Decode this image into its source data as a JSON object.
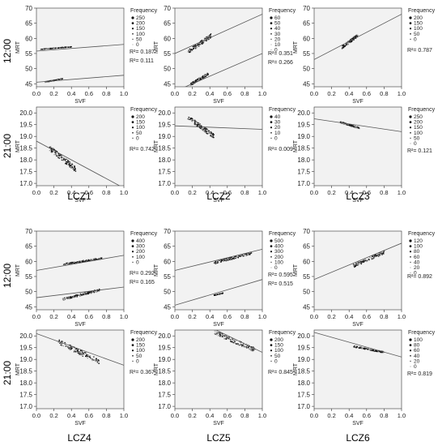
{
  "row_labels": [
    "12:00",
    "21:00",
    "12:00",
    "21:00"
  ],
  "lcz_labels": [
    "LCZ1",
    "LCZ2",
    "LCZ3",
    "LCZ4",
    "LCZ5",
    "LCZ6"
  ],
  "legend_title": "Frequency",
  "colors": {
    "plot_bg": "#f2f2f2",
    "points": "#111111",
    "line": "#555555",
    "axis": "#333333"
  },
  "chart_data": [
    {
      "id": "lcz1-12",
      "type": "scatter",
      "xlabel": "SVF",
      "ylabel": "MRT",
      "xlim": [
        0,
        1
      ],
      "ylim": [
        44,
        70
      ],
      "yticks": [
        45,
        50,
        55,
        60,
        65,
        70
      ],
      "xticks": [
        "0.0",
        "0.2",
        "0.4",
        "0.6",
        "0.8",
        "1.0"
      ],
      "legend": [
        "250",
        "200",
        "150",
        "100",
        "50",
        "0"
      ],
      "r2": [
        "R²= 0.187",
        "R²= 0.111"
      ],
      "clusters": [
        {
          "x": [
            0.05,
            0.4
          ],
          "y": [
            56.4,
            57.2
          ]
        },
        {
          "x": [
            0.1,
            0.3
          ],
          "y": [
            45.6,
            46.6
          ]
        }
      ],
      "lines": [
        [
          55.8,
          58.0
        ],
        [
          45.5,
          47.8
        ]
      ]
    },
    {
      "id": "lcz2-12",
      "type": "scatter",
      "xlabel": "SVF",
      "ylabel": "MRT",
      "xlim": [
        0,
        1
      ],
      "ylim": [
        44,
        70
      ],
      "yticks": [
        45,
        50,
        55,
        60,
        65,
        70
      ],
      "xticks": [
        "0.0",
        "0.2",
        "0.4",
        "0.6",
        "0.8",
        "1.0"
      ],
      "legend": [
        "60",
        "50",
        "40",
        "30",
        "20",
        "10",
        "0"
      ],
      "r2": [
        "R²= 0.351",
        "R²= 0.266"
      ],
      "clusters": [
        {
          "x": [
            0.15,
            0.42
          ],
          "y": [
            55.5,
            61.0
          ]
        },
        {
          "x": [
            0.18,
            0.38
          ],
          "y": [
            44.8,
            48.2
          ]
        }
      ],
      "lines": [
        [
          55.0,
          68.0
        ],
        [
          42.5,
          55.0
        ]
      ]
    },
    {
      "id": "lcz3-12",
      "type": "scatter",
      "xlabel": "SVF",
      "ylabel": "MRT",
      "xlim": [
        0,
        1
      ],
      "ylim": [
        44,
        70
      ],
      "yticks": [
        45,
        50,
        55,
        60,
        65,
        70
      ],
      "xticks": [
        "0.0",
        "0.2",
        "0.4",
        "0.6",
        "0.8",
        "1.0"
      ],
      "legend": [
        "200",
        "150",
        "100",
        "50",
        "0"
      ],
      "r2": [
        "R²= 0.787"
      ],
      "clusters": [
        {
          "x": [
            0.32,
            0.5
          ],
          "y": [
            57.0,
            61.0
          ]
        }
      ],
      "lines": [
        [
          53.0,
          68.0
        ]
      ]
    },
    {
      "id": "lcz1-21",
      "type": "scatter",
      "xlabel": "SVF",
      "ylabel": "MRT",
      "xlim": [
        0,
        1
      ],
      "ylim": [
        16.9,
        20.25
      ],
      "yticks": [
        17.0,
        17.5,
        18.0,
        18.5,
        19.0,
        19.5,
        20.0
      ],
      "xticks": [
        "0.0",
        "0.2",
        "0.4",
        "0.6",
        "0.8",
        "1.0"
      ],
      "legend": [
        "200",
        "150",
        "100",
        "50",
        "0"
      ],
      "r2": [
        "R²= 0.742"
      ],
      "clusters": [
        {
          "x": [
            0.15,
            0.45
          ],
          "y": [
            17.6,
            18.5
          ],
          "neg": true
        }
      ],
      "lines": [
        [
          18.8,
          16.8
        ]
      ]
    },
    {
      "id": "lcz2-21",
      "type": "scatter",
      "xlabel": "SVF",
      "ylabel": "MRT",
      "xlim": [
        0,
        1
      ],
      "ylim": [
        16.9,
        20.25
      ],
      "yticks": [
        17.0,
        17.5,
        18.0,
        18.5,
        19.0,
        19.5,
        20.0
      ],
      "xticks": [
        "0.0",
        "0.2",
        "0.4",
        "0.6",
        "0.8",
        "1.0"
      ],
      "legend": [
        "40",
        "30",
        "20",
        "10",
        "0"
      ],
      "r2": [
        "R²= 0.009"
      ],
      "clusters": [
        {
          "x": [
            0.15,
            0.45
          ],
          "y": [
            19.0,
            19.8
          ],
          "neg": true
        }
      ],
      "lines": [
        [
          19.45,
          19.3
        ]
      ]
    },
    {
      "id": "lcz3-21",
      "type": "scatter",
      "xlabel": "SVF",
      "ylabel": "MRT",
      "xlim": [
        0,
        1
      ],
      "ylim": [
        16.9,
        20.25
      ],
      "yticks": [
        17.0,
        17.5,
        18.0,
        18.5,
        19.0,
        19.5,
        20.0
      ],
      "xticks": [
        "0.0",
        "0.2",
        "0.4",
        "0.6",
        "0.8",
        "1.0"
      ],
      "legend": [
        "250",
        "200",
        "150",
        "100",
        "50",
        "0"
      ],
      "r2": [
        "R²= 0.121"
      ],
      "clusters": [
        {
          "x": [
            0.3,
            0.52
          ],
          "y": [
            19.35,
            19.6
          ],
          "neg": true
        }
      ],
      "lines": [
        [
          19.75,
          19.2
        ]
      ]
    },
    {
      "id": "lcz4-12",
      "type": "scatter",
      "xlabel": "SVF",
      "ylabel": "MRT",
      "xlim": [
        0,
        1
      ],
      "ylim": [
        44,
        70
      ],
      "yticks": [
        45,
        50,
        55,
        60,
        65,
        70
      ],
      "xticks": [
        "0.0",
        "0.2",
        "0.4",
        "0.6",
        "0.8",
        "1.0"
      ],
      "legend": [
        "400",
        "300",
        "200",
        "100",
        "0"
      ],
      "r2": [
        "R²= 0.292",
        "R²= 0.165"
      ],
      "clusters": [
        {
          "x": [
            0.3,
            0.75
          ],
          "y": [
            59.0,
            61.0
          ]
        },
        {
          "x": [
            0.3,
            0.72
          ],
          "y": [
            47.5,
            50.5
          ]
        }
      ],
      "lines": [
        [
          57.0,
          62.0
        ],
        [
          48.0,
          51.5
        ]
      ]
    },
    {
      "id": "lcz5-12",
      "type": "scatter",
      "xlabel": "SVF",
      "ylabel": "MRT",
      "xlim": [
        0,
        1
      ],
      "ylim": [
        44,
        70
      ],
      "yticks": [
        45,
        50,
        55,
        60,
        65,
        70
      ],
      "xticks": [
        "0.0",
        "0.2",
        "0.4",
        "0.6",
        "0.8",
        "1.0"
      ],
      "legend": [
        "500",
        "400",
        "300",
        "200",
        "100",
        "0"
      ],
      "r2": [
        "R²= 0.595",
        "R²= 0.515"
      ],
      "clusters": [
        {
          "x": [
            0.45,
            0.88
          ],
          "y": [
            59.5,
            62.8
          ]
        },
        {
          "x": [
            0.45,
            0.55
          ],
          "y": [
            48.8,
            49.5
          ]
        }
      ],
      "lines": [
        [
          57.0,
          64.0
        ],
        [
          45.5,
          54.0
        ]
      ]
    },
    {
      "id": "lcz6-12",
      "type": "scatter",
      "xlabel": "SVF",
      "ylabel": "MRT",
      "xlim": [
        0,
        1
      ],
      "ylim": [
        44,
        70
      ],
      "yticks": [
        45,
        50,
        55,
        60,
        65,
        70
      ],
      "xticks": [
        "0.0",
        "0.2",
        "0.4",
        "0.6",
        "0.8",
        "1.0"
      ],
      "legend": [
        "120",
        "100",
        "80",
        "60",
        "40",
        "20",
        "0"
      ],
      "r2": [
        "R²= 0.892"
      ],
      "clusters": [
        {
          "x": [
            0.45,
            0.8
          ],
          "y": [
            58.5,
            63.0
          ]
        }
      ],
      "lines": [
        [
          54.0,
          66.0
        ]
      ]
    },
    {
      "id": "lcz4-21",
      "type": "scatter",
      "xlabel": "SVF",
      "ylabel": "MRT",
      "xlim": [
        0,
        1
      ],
      "ylim": [
        16.9,
        20.25
      ],
      "yticks": [
        17.0,
        17.5,
        18.0,
        18.5,
        19.0,
        19.5,
        20.0
      ],
      "xticks": [
        "0.0",
        "0.2",
        "0.4",
        "0.6",
        "0.8",
        "1.0"
      ],
      "legend": [
        "200",
        "150",
        "100",
        "50",
        "0"
      ],
      "r2": [
        "R²= 0.367"
      ],
      "clusters": [
        {
          "x": [
            0.25,
            0.72
          ],
          "y": [
            18.9,
            19.75
          ],
          "neg": true
        }
      ],
      "lines": [
        [
          20.1,
          18.75
        ]
      ]
    },
    {
      "id": "lcz5-21",
      "type": "scatter",
      "xlabel": "SVF",
      "ylabel": "MRT",
      "xlim": [
        0,
        1
      ],
      "ylim": [
        16.9,
        20.25
      ],
      "yticks": [
        17.0,
        17.5,
        18.0,
        18.5,
        19.0,
        19.5,
        20.0
      ],
      "xticks": [
        "0.0",
        "0.2",
        "0.4",
        "0.6",
        "0.8",
        "1.0"
      ],
      "legend": [
        "200",
        "150",
        "100",
        "50",
        "0"
      ],
      "r2": [
        "R²= 0.845"
      ],
      "clusters": [
        {
          "x": [
            0.45,
            0.92
          ],
          "y": [
            19.4,
            20.15
          ],
          "neg": true
        }
      ],
      "lines": [
        [
          21.1,
          19.3
        ]
      ]
    },
    {
      "id": "lcz6-21",
      "type": "scatter",
      "xlabel": "SVF",
      "ylabel": "MRT",
      "xlim": [
        0,
        1
      ],
      "ylim": [
        16.9,
        20.25
      ],
      "yticks": [
        17.0,
        17.5,
        18.0,
        18.5,
        19.0,
        19.5,
        20.0
      ],
      "xticks": [
        "0.0",
        "0.2",
        "0.4",
        "0.6",
        "0.8",
        "1.0"
      ],
      "legend": [
        "100",
        "80",
        "60",
        "40",
        "20",
        "0"
      ],
      "r2": [
        "R²= 0.819"
      ],
      "clusters": [
        {
          "x": [
            0.45,
            0.8
          ],
          "y": [
            19.3,
            19.55
          ],
          "neg": true
        }
      ],
      "lines": [
        [
          20.15,
          19.1
        ]
      ]
    }
  ]
}
